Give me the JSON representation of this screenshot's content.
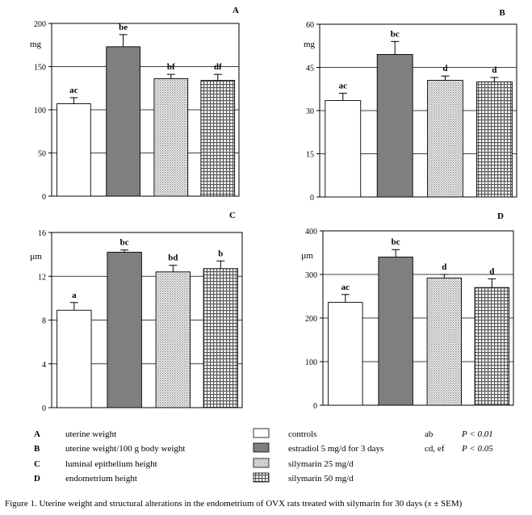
{
  "chart_data": [
    {
      "type": "bar",
      "panel_letter": "A",
      "ylabel": "mg",
      "ylim": [
        0,
        200
      ],
      "yticks": [
        0,
        50,
        100,
        150,
        200
      ],
      "grid": "horizontal major lines",
      "categories": [
        "controls",
        "estradiol 5 mg/d for 3 days",
        "silymarin 25 mg/d",
        "silymarin 50 mg/d"
      ],
      "values": [
        107,
        173,
        136,
        134
      ],
      "errors": [
        7,
        14,
        5,
        7
      ],
      "labels": [
        "ac",
        "be",
        "bf",
        "df"
      ]
    },
    {
      "type": "bar",
      "panel_letter": "B",
      "ylabel": "mg",
      "ylim": [
        0,
        60
      ],
      "yticks": [
        0,
        15,
        30,
        45,
        60
      ],
      "grid": "horizontal major lines",
      "categories": [
        "controls",
        "estradiol 5 mg/d for 3 days",
        "silymarin 25 mg/d",
        "silymarin 50 mg/d"
      ],
      "values": [
        33.5,
        49.5,
        40.5,
        40
      ],
      "errors": [
        2.5,
        4.5,
        1.5,
        1.5
      ],
      "labels": [
        "ac",
        "bc",
        "d",
        "d"
      ]
    },
    {
      "type": "bar",
      "panel_letter": "C",
      "ylabel": "µm",
      "ylim": [
        0,
        16
      ],
      "yticks": [
        0,
        4,
        8,
        12,
        16
      ],
      "grid": "horizontal major lines",
      "categories": [
        "controls",
        "estradiol 5 mg/d for 3 days",
        "silymarin 25 mg/d",
        "silymarin 50 mg/d"
      ],
      "values": [
        8.9,
        14.2,
        12.4,
        12.7
      ],
      "errors": [
        0.7,
        0.2,
        0.6,
        0.7
      ],
      "labels": [
        "a",
        "bc",
        "bd",
        "b"
      ]
    },
    {
      "type": "bar",
      "panel_letter": "D",
      "ylabel": "µm",
      "ylim": [
        0,
        400
      ],
      "yticks": [
        0,
        100,
        200,
        300,
        400
      ],
      "grid": "horizontal major lines",
      "categories": [
        "controls",
        "estradiol 5 mg/d for 3 days",
        "silymarin 25 mg/d",
        "silymarin 50 mg/d"
      ],
      "values": [
        236,
        340,
        292,
        270
      ],
      "errors": [
        18,
        17,
        8,
        20
      ],
      "labels": [
        "ac",
        "bc",
        "d",
        "d"
      ]
    }
  ],
  "series_fills": [
    "#ffffff",
    "#7f7f7f",
    "dots",
    "grid"
  ],
  "legend": {
    "panels": [
      {
        "letter": "A",
        "text": "uterine weight"
      },
      {
        "letter": "B",
        "text": "uterine weight/100 g body weight"
      },
      {
        "letter": "C",
        "text": "luminal epithelium height"
      },
      {
        "letter": "D",
        "text": "endometrium height"
      }
    ],
    "groups": [
      "controls",
      "estradiol 5 mg/d for 3 days",
      "silymarin 25 mg/d",
      "silymarin 50 mg/d"
    ],
    "significance": [
      {
        "codes": "ab",
        "p": "P < 0.01"
      },
      {
        "codes": "cd, ef",
        "p": "P < 0.05"
      }
    ]
  },
  "caption": {
    "main": "Figure 1. Uterine weight and structural alterations in the endometrium of OVX rats treated with silymarin for 30 days (",
    "x": "x",
    "suffix": " ± SEM)"
  }
}
